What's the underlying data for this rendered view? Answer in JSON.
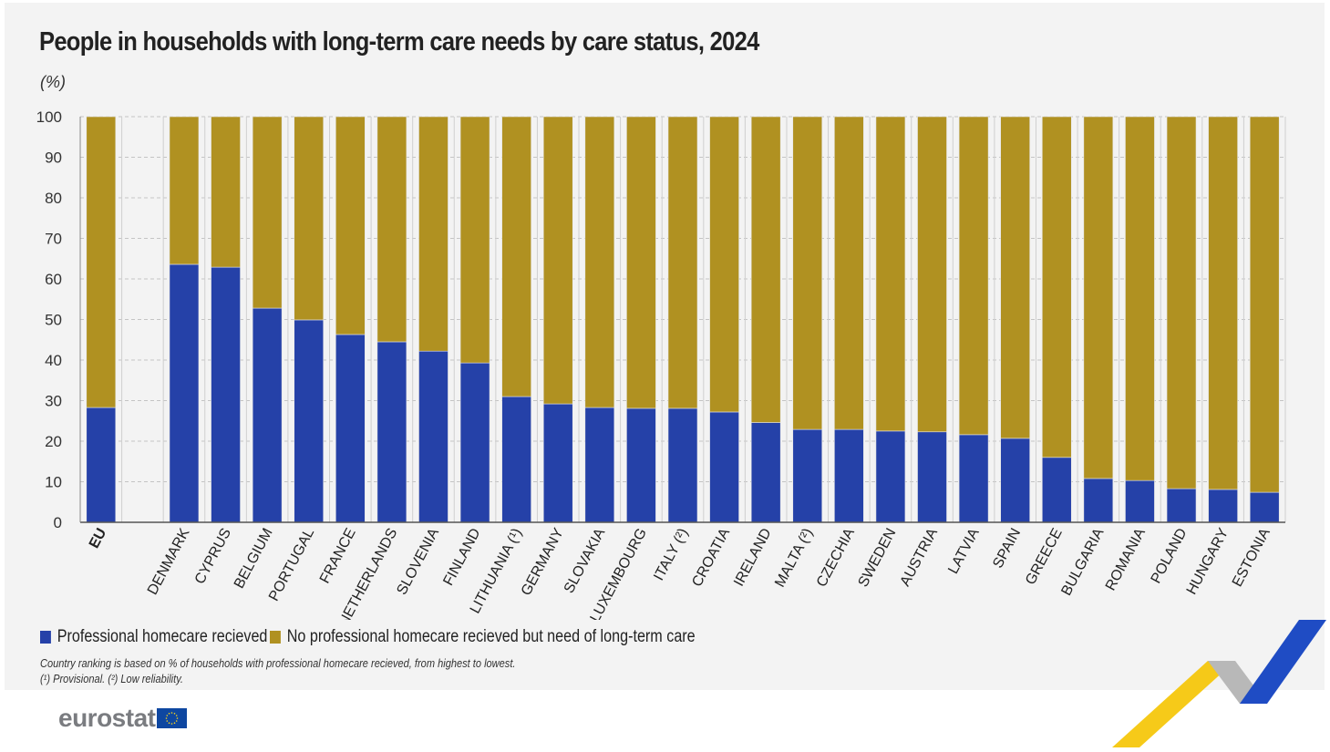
{
  "title": "People in households with long-term care needs by care status, 2024",
  "unit": "(%)",
  "colors": {
    "professional": "#2541a8",
    "no_professional": "#b09121"
  },
  "chart_data": {
    "type": "bar",
    "stacked": true,
    "title": "People in households with long-term care needs by care status, 2024",
    "ylabel": "(%)",
    "ylim": [
      0,
      100
    ],
    "yticks": [
      0,
      10,
      20,
      30,
      40,
      50,
      60,
      70,
      80,
      90,
      100
    ],
    "grid": true,
    "legend_position": "bottom-left",
    "categories": [
      "EU",
      "",
      "DENMARK",
      "CYPRUS",
      "BELGIUM",
      "PORTUGAL",
      "FRANCE",
      "NETHERLANDS",
      "SLOVENIA",
      "FINLAND",
      "LITHUANIA (¹)",
      "GERMANY",
      "SLOVAKIA",
      "LUXEMBOURG",
      "ITALY (²)",
      "CROATIA",
      "IRELAND",
      "MALTA (²)",
      "CZECHIA",
      "SWEDEN",
      "AUSTRIA",
      "LATVIA",
      "SPAIN",
      "GREECE",
      "BULGARIA",
      "ROMANIA",
      "POLAND",
      "HUNGARY",
      "ESTONIA"
    ],
    "series": [
      {
        "name": "Professional homecare recieved",
        "values": [
          28.3,
          null,
          63.6,
          62.9,
          52.8,
          49.9,
          46.3,
          44.5,
          42.2,
          39.3,
          31.0,
          29.2,
          28.3,
          28.1,
          28.1,
          27.2,
          24.6,
          22.9,
          22.9,
          22.5,
          22.3,
          21.6,
          20.7,
          16.0,
          10.8,
          10.3,
          8.3,
          8.1,
          7.4
        ]
      },
      {
        "name": "No professional homecare recieved but need of long-term care",
        "values": [
          71.7,
          null,
          36.4,
          37.1,
          47.2,
          50.1,
          53.7,
          55.5,
          57.8,
          60.7,
          69.0,
          70.8,
          71.7,
          71.9,
          71.9,
          72.8,
          75.4,
          77.1,
          77.1,
          77.5,
          77.7,
          78.4,
          79.3,
          84.0,
          89.2,
          89.7,
          91.7,
          91.9,
          92.6
        ]
      }
    ]
  },
  "notes": [
    "Country ranking is based on % of households with professional homecare recieved, from highest to lowest.",
    "(¹) Provisional. (²) Low reliability."
  ],
  "logo": "eurostat"
}
